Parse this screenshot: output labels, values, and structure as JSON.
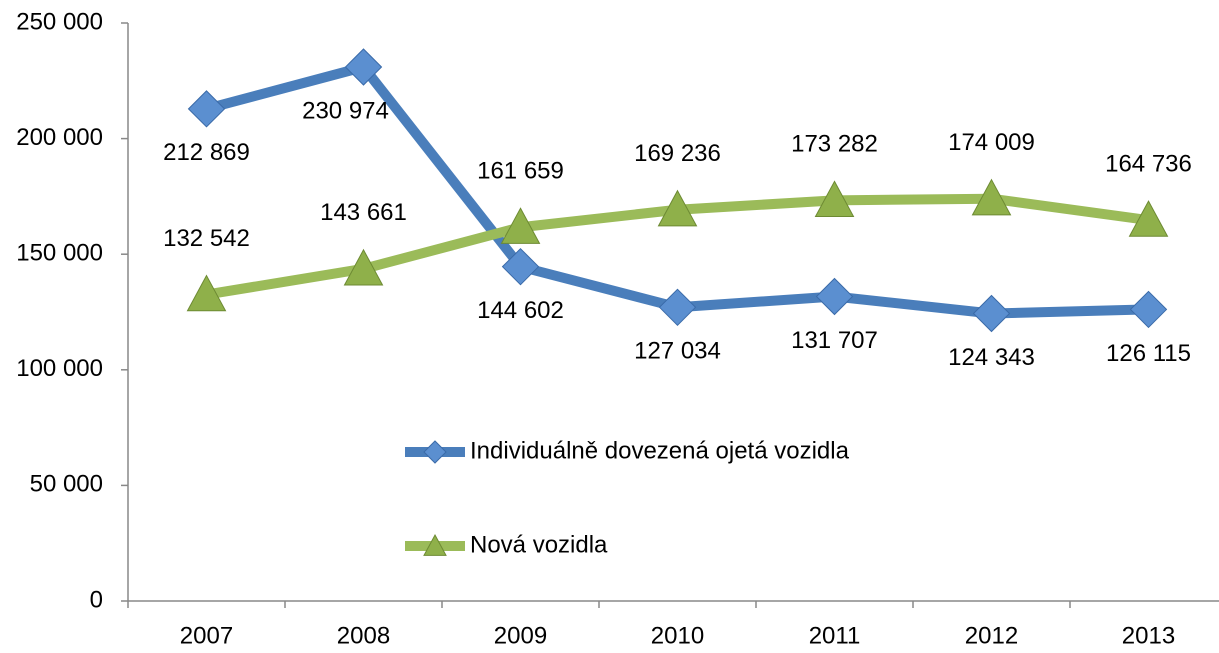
{
  "chart_data": {
    "type": "line",
    "categories": [
      "2007",
      "2008",
      "2009",
      "2010",
      "2011",
      "2012",
      "2013"
    ],
    "series": [
      {
        "name": "Individuálně dovezená ojetá vozidla",
        "color": "#4a7ebb",
        "marker": "diamond",
        "values": [
          212869,
          230974,
          144602,
          127034,
          131707,
          124343,
          126115
        ],
        "value_labels": [
          "212 869",
          "230 974",
          "144 602",
          "127 034",
          "131 707",
          "124 343",
          "126 115"
        ]
      },
      {
        "name": "Nová vozidla",
        "color": "#9bbb59",
        "marker": "triangle",
        "values": [
          132542,
          143661,
          161659,
          169236,
          173282,
          174009,
          164736
        ],
        "value_labels": [
          "132 542",
          "143 661",
          "161 659",
          "169 236",
          "173 282",
          "174 009",
          "164 736"
        ]
      }
    ],
    "ylim": [
      0,
      250000
    ],
    "yticks": [
      0,
      {
        "value": 50000,
        "label": "50 000"
      },
      {
        "value": 100000,
        "label": "100 000"
      },
      {
        "value": 150000,
        "label": "150 000"
      },
      {
        "value": 200000,
        "label": "200 000"
      },
      {
        "value": 250000,
        "label": "250 000"
      }
    ],
    "grid": false
  }
}
